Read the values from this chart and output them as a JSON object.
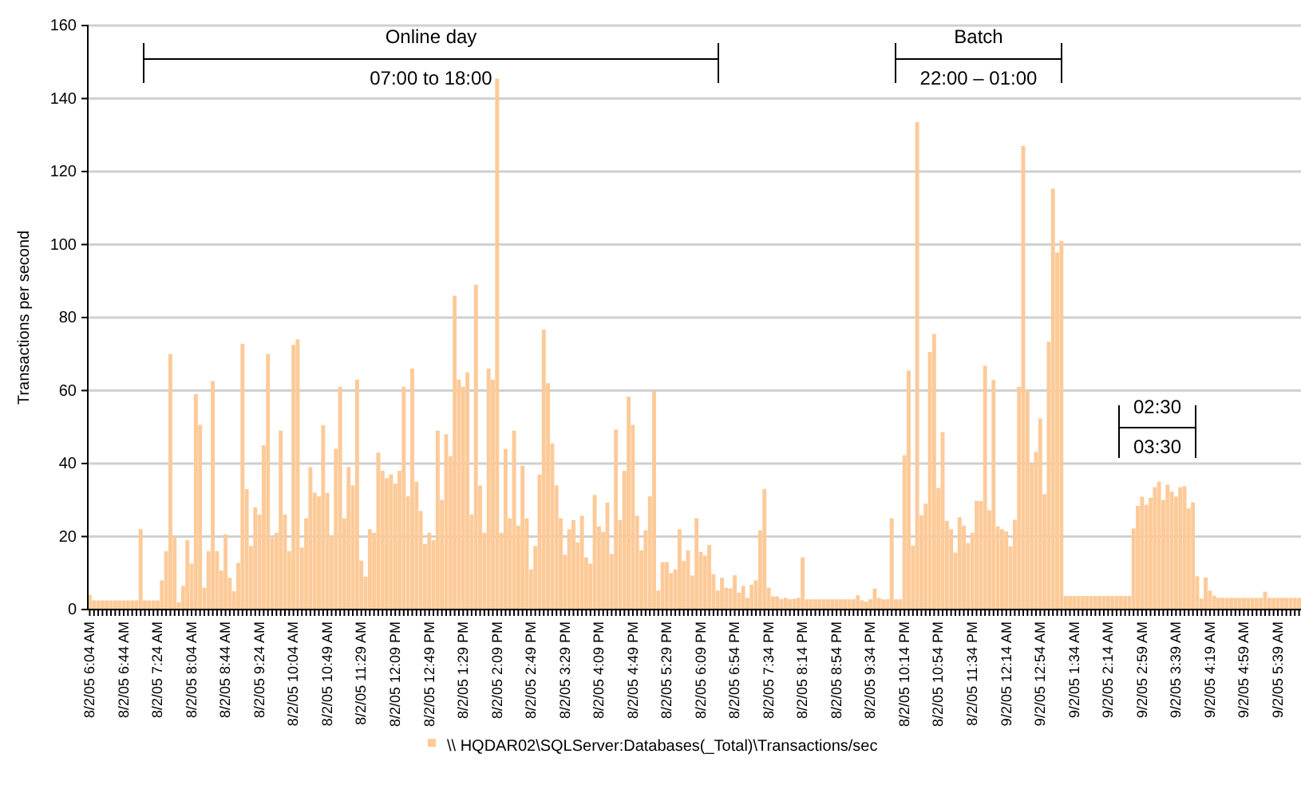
{
  "chart_data": {
    "type": "bar",
    "ylabel": "Transactions per second",
    "ylim": [
      0,
      160
    ],
    "yticks": [
      0,
      20,
      40,
      60,
      80,
      100,
      120,
      140,
      160
    ],
    "grid": "y",
    "legend": "bottom",
    "annotations": [
      "Online day",
      "07:00 to 18:00",
      "Batch",
      "22:00 – 01:00",
      "02:30",
      "03:30"
    ],
    "categories": [
      "8/2/05 6:04 AM",
      null,
      null,
      null,
      null,
      null,
      null,
      null,
      "8/2/05 6:44 AM",
      null,
      null,
      null,
      null,
      null,
      null,
      null,
      "8/2/05 7:24 AM",
      null,
      null,
      null,
      null,
      null,
      null,
      null,
      "8/2/05 8:04 AM",
      null,
      null,
      null,
      null,
      null,
      null,
      null,
      "8/2/05 8:44 AM",
      null,
      null,
      null,
      null,
      null,
      null,
      null,
      "8/2/05 9:24 AM",
      null,
      null,
      null,
      null,
      null,
      null,
      null,
      "8/2/05 10:04 AM",
      null,
      null,
      null,
      null,
      null,
      null,
      null,
      "8/2/05 10:49 AM",
      null,
      null,
      null,
      null,
      null,
      null,
      null,
      "8/2/05 11:29 AM",
      null,
      null,
      null,
      null,
      null,
      null,
      null,
      "8/2/05 12:09 PM",
      null,
      null,
      null,
      null,
      null,
      null,
      null,
      "8/2/05 12:49 PM",
      null,
      null,
      null,
      null,
      null,
      null,
      null,
      "8/2/05 1:29 PM",
      null,
      null,
      null,
      null,
      null,
      null,
      null,
      "8/2/05 2:09 PM",
      null,
      null,
      null,
      null,
      null,
      null,
      null,
      "8/2/05 2:49 PM",
      null,
      null,
      null,
      null,
      null,
      null,
      null,
      "8/2/05 3:29 PM",
      null,
      null,
      null,
      null,
      null,
      null,
      null,
      "8/2/05 4:09 PM",
      null,
      null,
      null,
      null,
      null,
      null,
      null,
      "8/2/05 4:49 PM",
      null,
      null,
      null,
      null,
      null,
      null,
      null,
      "8/2/05 5:29 PM",
      null,
      null,
      null,
      null,
      null,
      null,
      null,
      "8/2/05 6:09 PM",
      null,
      null,
      null,
      null,
      null,
      null,
      null,
      "8/2/05 6:54 PM",
      null,
      null,
      null,
      null,
      null,
      null,
      null,
      "8/2/05 7:34 PM",
      null,
      null,
      null,
      null,
      null,
      null,
      null,
      "8/2/05 8:14 PM",
      null,
      null,
      null,
      null,
      null,
      null,
      null,
      "8/2/05 8:54 PM",
      null,
      null,
      null,
      null,
      null,
      null,
      null,
      "8/2/05 9:34 PM",
      null,
      null,
      null,
      null,
      null,
      null,
      null,
      "8/2/05 10:14 PM",
      null,
      null,
      null,
      null,
      null,
      null,
      null,
      "8/2/05 10:54 PM",
      null,
      null,
      null,
      null,
      null,
      null,
      null,
      "8/2/05 11:34 PM",
      null,
      null,
      null,
      null,
      null,
      null,
      null,
      "9/2/05 12:14 AM",
      null,
      null,
      null,
      null,
      null,
      null,
      null,
      "9/2/05 12:54 AM",
      null,
      null,
      null,
      null,
      null,
      null,
      null,
      "9/2/05 1:34 AM",
      null,
      null,
      null,
      null,
      null,
      null,
      null,
      "9/2/05 2:14 AM",
      null,
      null,
      null,
      null,
      null,
      null,
      null,
      "9/2/05 2:59 AM",
      null,
      null,
      null,
      null,
      null,
      null,
      null,
      "9/2/05 3:39 AM",
      null,
      null,
      null,
      null,
      null,
      null,
      null,
      "9/2/05 4:19 AM",
      null,
      null,
      null,
      null,
      null,
      null,
      null,
      "9/2/05 4:59 AM",
      null,
      null,
      null,
      null,
      null,
      null,
      null,
      "9/2/05 5:39 AM",
      null,
      null,
      null,
      null,
      null
    ],
    "series": [
      {
        "name": "\\\\ HQDAR02\\SQLServer:Databases(_Total)\\Transactions/sec",
        "color": "#fdca98",
        "values": [
          4,
          2.5,
          2.5,
          2.5,
          2.5,
          2.5,
          2.5,
          2.5,
          2.5,
          2.5,
          2.5,
          2.5,
          22,
          2.5,
          2.5,
          2.5,
          2.5,
          8,
          16,
          70,
          20,
          2,
          6.5,
          19,
          12.6,
          59,
          50.6,
          6,
          16,
          62.6,
          16,
          10.7,
          20.6,
          8.7,
          5,
          12.8,
          72.8,
          33,
          17.4,
          28,
          26,
          45,
          70,
          19.6,
          21,
          49,
          26,
          16,
          72.5,
          74,
          17,
          25,
          39,
          32,
          31,
          50.5,
          32,
          20,
          44,
          61,
          25,
          39,
          34,
          63,
          13.4,
          9,
          22,
          21,
          43,
          38,
          36,
          37,
          34.5,
          38,
          61,
          31,
          66,
          35,
          27,
          18,
          21,
          19,
          49,
          30,
          48,
          42,
          86,
          63,
          61,
          65,
          26,
          89,
          34,
          21,
          66,
          63,
          145.5,
          21,
          44,
          25,
          49,
          23,
          39.4,
          25,
          11,
          17.4,
          37,
          76.7,
          62,
          45.5,
          34,
          25,
          15,
          22,
          24.5,
          18.4,
          25.7,
          14.3,
          12.6,
          31.4,
          22.8,
          21.3,
          29.3,
          15.2,
          49.3,
          24.5,
          38,
          58.3,
          50.6,
          25.7,
          16.2,
          21.7,
          31,
          59.7,
          5.2,
          13,
          13,
          10,
          11,
          22,
          13.3,
          16.2,
          9.3,
          25,
          15.8,
          14.8,
          17.7,
          9.7,
          5.2,
          8.7,
          6,
          5.8,
          9.4,
          4.6,
          6.5,
          3.2,
          6.8,
          8,
          21.7,
          33,
          6,
          3.6,
          3.6,
          2.9,
          3.2,
          2.8,
          2.9,
          3.2,
          14.3,
          2.8,
          2.8,
          2.8,
          2.8,
          2.8,
          2.8,
          2.8,
          2.8,
          2.8,
          2.8,
          2.8,
          2.8,
          3.9,
          2.5,
          2.2,
          2.8,
          5.7,
          3.2,
          2.8,
          2.8,
          25,
          2.8,
          2.8,
          42.3,
          65.5,
          17.5,
          133.5,
          25.8,
          29,
          70.6,
          75.5,
          33.3,
          48.6,
          24.3,
          22,
          15.6,
          25.3,
          23,
          18.2,
          21,
          29.8,
          29.7,
          66.8,
          27.2,
          62.9,
          22.8,
          22,
          21.4,
          17.3,
          24.6,
          61,
          127,
          60,
          40,
          43.2,
          52.3,
          31.6,
          73.4,
          115.3,
          97.8,
          101,
          3.7,
          3.7,
          3.7,
          3.7,
          3.7,
          3.7,
          3.7,
          3.7,
          3.7,
          3.7,
          3.7,
          3.7,
          3.7,
          3.7,
          3.7,
          3.7,
          22.2,
          28.4,
          30.9,
          28.7,
          30.6,
          33.5,
          35,
          30,
          34.2,
          32.3,
          30.9,
          33.5,
          33.8,
          27.7,
          29.4,
          9.1,
          3,
          8.8,
          5.2,
          3.8,
          3.2,
          3.2,
          3.2,
          3.2,
          3.2,
          3.2,
          3.2,
          3.2,
          3.2,
          3.2,
          3.2,
          4.9,
          3.2,
          3.2,
          3.2,
          3.2,
          3.2,
          3.2,
          3.2,
          3.2
        ]
      }
    ]
  }
}
